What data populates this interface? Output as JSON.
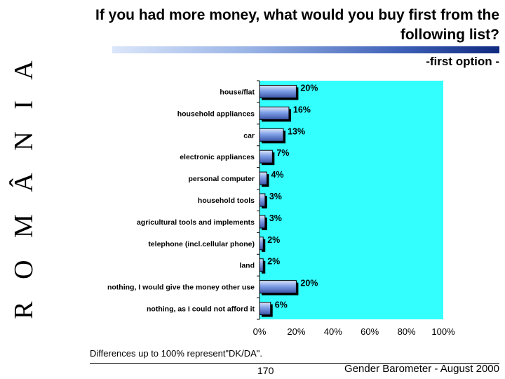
{
  "sidebar": {
    "country": "R O M Â N I A"
  },
  "header": {
    "title": "If you had more money, what would you buy first from the following list?",
    "subtitle": "-first option -"
  },
  "chart_data": {
    "type": "bar",
    "orientation": "horizontal",
    "categories": [
      "house/flat",
      "household appliances",
      "car",
      "electronic appliances",
      "personal computer",
      "household tools",
      "agricultural tools and implements",
      "telephone (incl.cellular phone)",
      "land",
      "nothing, I would give the money other use",
      "nothing, as I could not afford it"
    ],
    "values": [
      20,
      16,
      13,
      7,
      4,
      3,
      3,
      2,
      2,
      20,
      6
    ],
    "value_labels": [
      "20%",
      "16%",
      "13%",
      "7%",
      "4%",
      "3%",
      "3%",
      "2%",
      "2%",
      "20%",
      "6%"
    ],
    "x_ticks": [
      "0%",
      "20%",
      "40%",
      "60%",
      "80%",
      "100%"
    ],
    "xlim": [
      0,
      100
    ],
    "plot_background": "#33ffff",
    "bar_color": "#7f9fe6",
    "grid": false
  },
  "footer": {
    "note": "Differences up to 100% represent\"DK/DA\".",
    "page": "170",
    "source": "Gender Barometer - August 2000"
  }
}
